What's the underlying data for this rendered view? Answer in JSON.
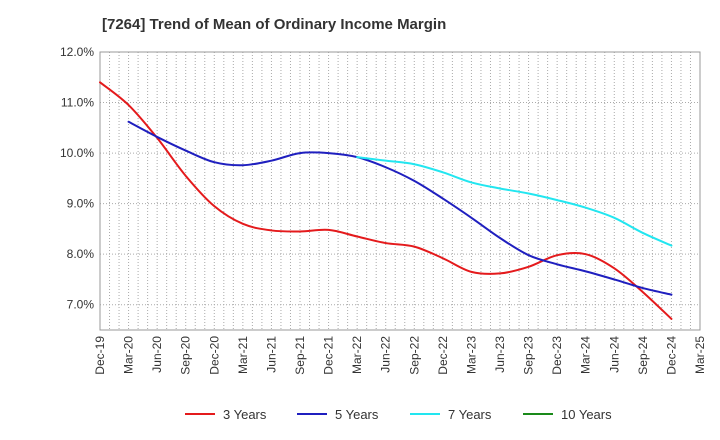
{
  "chart_data": {
    "type": "line",
    "title": "[7264]  Trend of Mean of Ordinary Income Margin",
    "xlabel": "",
    "ylabel": "",
    "ylim": [
      6.5,
      12.0
    ],
    "yticks": [
      "7.0%",
      "8.0%",
      "9.0%",
      "10.0%",
      "11.0%",
      "12.0%"
    ],
    "ytick_values": [
      7.0,
      8.0,
      9.0,
      10.0,
      11.0,
      12.0
    ],
    "categories": [
      "Dec-19",
      "Mar-20",
      "Jun-20",
      "Sep-20",
      "Dec-20",
      "Mar-21",
      "Jun-21",
      "Sep-21",
      "Dec-21",
      "Mar-22",
      "Jun-22",
      "Sep-22",
      "Dec-22",
      "Mar-23",
      "Jun-23",
      "Sep-23",
      "Dec-23",
      "Mar-24",
      "Jun-24",
      "Sep-24",
      "Dec-24",
      "Mar-25"
    ],
    "grid": true,
    "legend_position": "bottom",
    "series": [
      {
        "name": "3 Years",
        "color": "#e41a1c",
        "values": [
          11.4,
          10.95,
          10.3,
          9.55,
          8.95,
          8.6,
          8.47,
          8.45,
          8.48,
          8.35,
          8.22,
          8.15,
          7.92,
          7.65,
          7.62,
          7.75,
          7.98,
          8.0,
          7.72,
          7.25,
          6.72,
          null
        ]
      },
      {
        "name": "5 Years",
        "color": "#1f1fbf",
        "values": [
          null,
          10.62,
          10.32,
          10.05,
          9.82,
          9.76,
          9.85,
          10.0,
          10.0,
          9.92,
          9.72,
          9.45,
          9.1,
          8.72,
          8.32,
          7.98,
          7.8,
          7.66,
          7.5,
          7.33,
          7.2,
          null
        ]
      },
      {
        "name": "7 Years",
        "color": "#22e6f0",
        "values": [
          null,
          null,
          null,
          null,
          null,
          null,
          null,
          null,
          null,
          9.92,
          9.85,
          9.78,
          9.62,
          9.42,
          9.3,
          9.2,
          9.07,
          8.92,
          8.72,
          8.42,
          8.17,
          null
        ]
      },
      {
        "name": "10 Years",
        "color": "#1a8a1a",
        "values": [
          null,
          null,
          null,
          null,
          null,
          null,
          null,
          null,
          null,
          null,
          null,
          null,
          null,
          null,
          null,
          null,
          null,
          null,
          null,
          null,
          null,
          null
        ]
      }
    ]
  }
}
